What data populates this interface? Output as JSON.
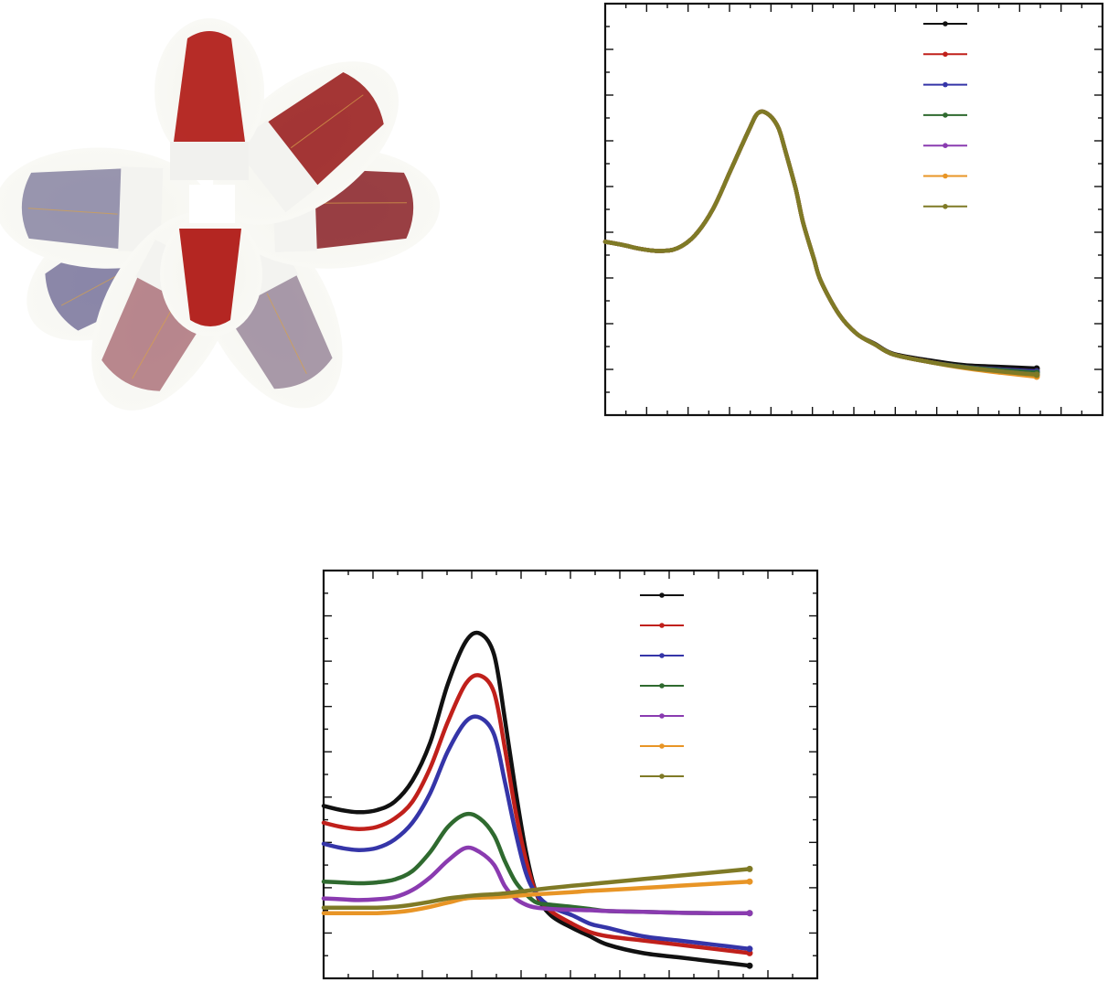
{
  "photo": {
    "vial_colors": [
      "#b01a16",
      "#9a2020",
      "#8e2a30",
      "#b07a82",
      "#9e8ea0",
      "#8d8aa6",
      "#7e7aa0"
    ]
  },
  "chart_data": [
    {
      "type": "line",
      "title": "",
      "xlabel": "",
      "ylabel": "",
      "xlim": [
        0,
        600
      ],
      "ylim": [
        0,
        1
      ],
      "grid": false,
      "legend_placement": "top-right",
      "x": [
        0,
        25,
        50,
        75,
        100,
        125,
        150,
        175,
        200,
        212,
        225,
        240,
        250,
        265,
        275,
        290,
        300,
        325,
        350,
        375,
        400,
        450,
        500,
        550,
        600
      ],
      "series": [
        {
          "color": "#111111",
          "values": [
            0.46,
            0.45,
            0.438,
            0.432,
            0.44,
            0.48,
            0.56,
            0.68,
            0.8,
            0.85,
            0.85,
            0.81,
            0.74,
            0.62,
            0.52,
            0.41,
            0.34,
            0.24,
            0.18,
            0.15,
            0.12,
            0.1,
            0.085,
            0.08,
            0.075
          ]
        },
        {
          "color": "#c0201b",
          "values": [
            0.46,
            0.45,
            0.438,
            0.432,
            0.44,
            0.48,
            0.56,
            0.68,
            0.8,
            0.85,
            0.85,
            0.81,
            0.74,
            0.62,
            0.52,
            0.41,
            0.34,
            0.24,
            0.18,
            0.148,
            0.118,
            0.095,
            0.08,
            0.072,
            0.066
          ]
        },
        {
          "color": "#3535a8",
          "values": [
            0.46,
            0.45,
            0.438,
            0.432,
            0.44,
            0.48,
            0.56,
            0.68,
            0.8,
            0.85,
            0.85,
            0.81,
            0.74,
            0.62,
            0.52,
            0.41,
            0.34,
            0.24,
            0.18,
            0.148,
            0.118,
            0.095,
            0.08,
            0.072,
            0.066
          ]
        },
        {
          "color": "#2f6a2f",
          "values": [
            0.46,
            0.45,
            0.438,
            0.432,
            0.44,
            0.48,
            0.56,
            0.68,
            0.8,
            0.85,
            0.85,
            0.81,
            0.74,
            0.62,
            0.52,
            0.41,
            0.34,
            0.24,
            0.18,
            0.148,
            0.118,
            0.095,
            0.08,
            0.07,
            0.062
          ]
        },
        {
          "color": "#8a3bb0",
          "values": [
            0.46,
            0.45,
            0.438,
            0.432,
            0.44,
            0.48,
            0.56,
            0.68,
            0.8,
            0.85,
            0.85,
            0.81,
            0.74,
            0.62,
            0.52,
            0.41,
            0.34,
            0.24,
            0.18,
            0.148,
            0.118,
            0.095,
            0.078,
            0.066,
            0.056
          ]
        },
        {
          "color": "#e89526",
          "values": [
            0.46,
            0.45,
            0.438,
            0.432,
            0.44,
            0.48,
            0.56,
            0.68,
            0.8,
            0.85,
            0.85,
            0.81,
            0.74,
            0.62,
            0.52,
            0.41,
            0.34,
            0.24,
            0.18,
            0.148,
            0.118,
            0.095,
            0.076,
            0.062,
            0.05
          ]
        },
        {
          "color": "#7f7a26",
          "values": [
            0.46,
            0.45,
            0.438,
            0.432,
            0.44,
            0.48,
            0.56,
            0.68,
            0.8,
            0.85,
            0.85,
            0.81,
            0.74,
            0.62,
            0.52,
            0.41,
            0.34,
            0.24,
            0.18,
            0.148,
            0.118,
            0.095,
            0.078,
            0.066,
            0.056
          ]
        }
      ]
    },
    {
      "type": "line",
      "title": "",
      "xlabel": "",
      "ylabel": "",
      "xlim": [
        0,
        600
      ],
      "ylim": [
        0,
        1
      ],
      "grid": false,
      "legend_placement": "top-right",
      "x": [
        0,
        25,
        50,
        75,
        100,
        125,
        150,
        175,
        200,
        220,
        240,
        255,
        270,
        285,
        300,
        320,
        350,
        375,
        400,
        450,
        500,
        550,
        600
      ],
      "series": [
        {
          "color": "#111111",
          "values": [
            0.41,
            0.4,
            0.395,
            0.4,
            0.42,
            0.47,
            0.56,
            0.7,
            0.8,
            0.82,
            0.77,
            0.62,
            0.45,
            0.3,
            0.2,
            0.15,
            0.12,
            0.1,
            0.08,
            0.06,
            0.05,
            0.04,
            0.03
          ]
        },
        {
          "color": "#c0201b",
          "values": [
            0.37,
            0.36,
            0.355,
            0.36,
            0.38,
            0.42,
            0.5,
            0.61,
            0.7,
            0.72,
            0.68,
            0.55,
            0.4,
            0.28,
            0.2,
            0.16,
            0.13,
            0.11,
            0.1,
            0.09,
            0.08,
            0.07,
            0.06
          ]
        },
        {
          "color": "#3535a8",
          "values": [
            0.32,
            0.31,
            0.305,
            0.31,
            0.33,
            0.37,
            0.44,
            0.54,
            0.61,
            0.62,
            0.58,
            0.47,
            0.35,
            0.25,
            0.2,
            0.17,
            0.15,
            0.13,
            0.12,
            0.1,
            0.09,
            0.08,
            0.07
          ]
        },
        {
          "color": "#2f6a2f",
          "values": [
            0.23,
            0.228,
            0.226,
            0.228,
            0.235,
            0.255,
            0.3,
            0.36,
            0.39,
            0.38,
            0.34,
            0.28,
            0.23,
            0.2,
            0.18,
            0.175,
            0.17,
            0.165,
            0.16,
            0.158,
            0.156,
            0.155,
            0.155
          ]
        },
        {
          "color": "#8a3bb0",
          "values": [
            0.19,
            0.188,
            0.186,
            0.188,
            0.193,
            0.21,
            0.24,
            0.28,
            0.31,
            0.3,
            0.27,
            0.22,
            0.19,
            0.175,
            0.168,
            0.165,
            0.163,
            0.162,
            0.16,
            0.158,
            0.156,
            0.155,
            0.155
          ]
        },
        {
          "color": "#e89526",
          "values": [
            0.155,
            0.155,
            0.155,
            0.155,
            0.157,
            0.162,
            0.17,
            0.18,
            0.19,
            0.192,
            0.193,
            0.194,
            0.196,
            0.198,
            0.2,
            0.202,
            0.205,
            0.208,
            0.21,
            0.215,
            0.22,
            0.225,
            0.23
          ]
        },
        {
          "color": "#7f7a26",
          "values": [
            0.168,
            0.168,
            0.168,
            0.168,
            0.17,
            0.175,
            0.182,
            0.19,
            0.195,
            0.198,
            0.2,
            0.202,
            0.205,
            0.208,
            0.211,
            0.215,
            0.22,
            0.224,
            0.228,
            0.236,
            0.244,
            0.252,
            0.26
          ]
        }
      ]
    }
  ]
}
